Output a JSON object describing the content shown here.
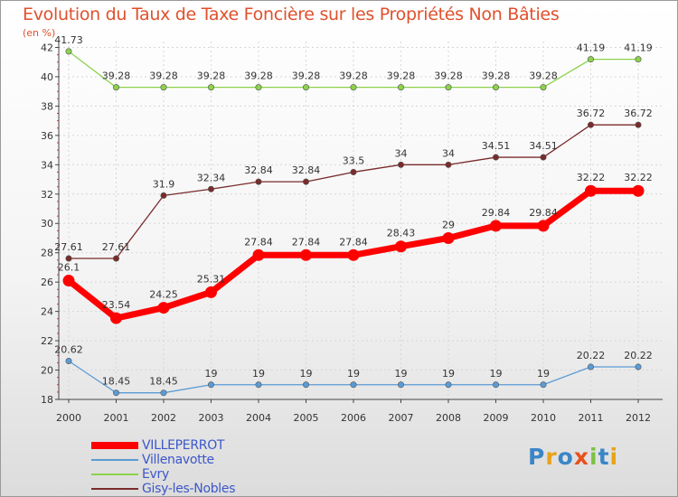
{
  "title": "Evolution du Taux de Taxe Foncière sur les Propriétés Non Bâties",
  "unit_label": "(en %)",
  "chart_data": {
    "type": "line",
    "title": "Evolution du Taux de Taxe Foncière sur les Propriétés Non Bâties",
    "ylabel": "(en %)",
    "xlabel": "",
    "x": [
      "2000",
      "2001",
      "2002",
      "2003",
      "2004",
      "2005",
      "2006",
      "2007",
      "2008",
      "2009",
      "2010",
      "2011",
      "2012"
    ],
    "yticks": [
      18,
      20,
      22,
      24,
      26,
      28,
      30,
      32,
      34,
      36,
      38,
      40,
      42
    ],
    "ylim": [
      18,
      42.4
    ],
    "grid": true,
    "series": [
      {
        "name": "VILLEPERROT",
        "color": "#ff0000",
        "values": [
          26.1,
          23.54,
          24.25,
          25.31,
          27.84,
          27.84,
          27.84,
          28.43,
          29,
          29.84,
          29.84,
          32.22,
          32.22
        ],
        "labels": [
          "26.1",
          "23.54",
          "24.25",
          "25.31",
          "27.84",
          "27.84",
          "27.84",
          "28.43",
          "29",
          "29.84",
          "29.84",
          "32.22",
          "32.22"
        ]
      },
      {
        "name": "Villenavotte",
        "color": "#5b9bd5",
        "values": [
          20.62,
          18.45,
          18.45,
          19,
          19,
          19,
          19,
          19,
          19,
          19,
          19,
          20.22,
          20.22
        ],
        "labels": [
          "20.62",
          "18.45",
          "18.45",
          "19",
          "19",
          "19",
          "19",
          "19",
          "19",
          "19",
          "19",
          "20.22",
          "20.22"
        ]
      },
      {
        "name": "Evry",
        "color": "#8cd24b",
        "values": [
          41.73,
          39.28,
          39.28,
          39.28,
          39.28,
          39.28,
          39.28,
          39.28,
          39.28,
          39.28,
          39.28,
          41.19,
          41.19
        ],
        "labels": [
          "41.73",
          "39.28",
          "39.28",
          "39.28",
          "39.28",
          "39.28",
          "39.28",
          "39.28",
          "39.28",
          "39.28",
          "39.28",
          "41.19",
          "41.19"
        ]
      },
      {
        "name": "Gisy-les-Nobles",
        "color": "#7a2b2b",
        "values": [
          27.61,
          27.61,
          31.9,
          32.34,
          32.84,
          32.84,
          33.5,
          34,
          34,
          34.51,
          34.51,
          36.72,
          36.72
        ],
        "labels": [
          "27.61",
          "27.61",
          "31.9",
          "32.34",
          "32.84",
          "32.84",
          "33.5",
          "34",
          "34",
          "34.51",
          "34.51",
          "36.72",
          "36.72"
        ]
      }
    ]
  },
  "legend": [
    {
      "label": "VILLEPERROT",
      "color": "#ff0000"
    },
    {
      "label": "Villenavotte",
      "color": "#5b9bd5"
    },
    {
      "label": "Evry",
      "color": "#8cd24b"
    },
    {
      "label": "Gisy-les-Nobles",
      "color": "#7a2b2b"
    }
  ],
  "logo": {
    "letters": [
      "P",
      "r",
      "o",
      "x",
      "i",
      "t",
      "i"
    ],
    "colors": [
      "#3a86c8",
      "#e8a21c",
      "#3a86c8",
      "#e8501c",
      "#7cc242",
      "#3a86c8",
      "#e8a21c"
    ]
  }
}
